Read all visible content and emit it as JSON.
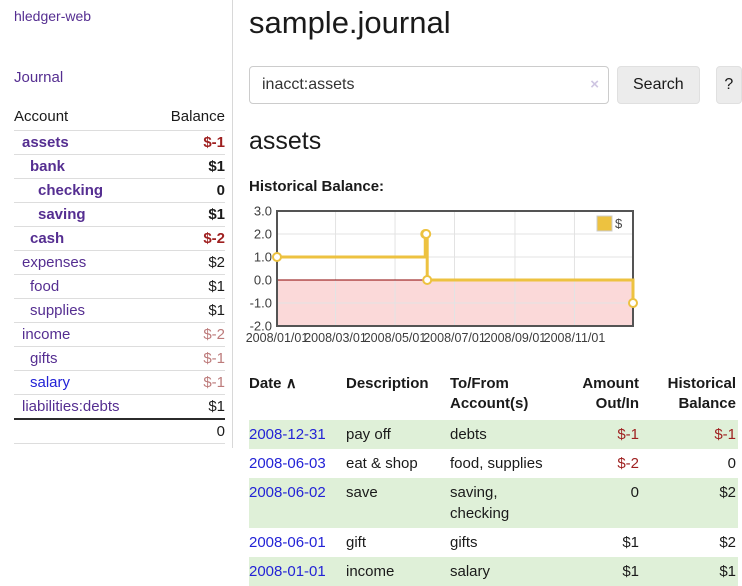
{
  "app": {
    "brand": "hledger-web",
    "nav_journal": "Journal"
  },
  "header": {
    "title": "sample.journal"
  },
  "search": {
    "value": "inacct:assets",
    "clear_icon": "×",
    "button_label": "Search",
    "help_label": "?"
  },
  "account_page": {
    "heading": "assets",
    "chart_label": "Historical Balance:"
  },
  "sidebar": {
    "col_account": "Account",
    "col_balance": "Balance",
    "accounts": [
      {
        "name": "assets",
        "depth": 1,
        "bold": true,
        "balance": "$-1",
        "neg": "strong",
        "blue": false
      },
      {
        "name": "bank",
        "depth": 2,
        "bold": true,
        "balance": "$1",
        "neg": "none",
        "blue": false
      },
      {
        "name": "checking",
        "depth": 3,
        "bold": true,
        "balance": "0",
        "neg": "none",
        "blue": false
      },
      {
        "name": "saving",
        "depth": 3,
        "bold": true,
        "balance": "$1",
        "neg": "none",
        "blue": false
      },
      {
        "name": "cash",
        "depth": 2,
        "bold": true,
        "balance": "$-2",
        "neg": "strong",
        "blue": false
      },
      {
        "name": "expenses",
        "depth": 1,
        "bold": false,
        "balance": "$2",
        "neg": "none",
        "blue": false
      },
      {
        "name": "food",
        "depth": 2,
        "bold": false,
        "balance": "$1",
        "neg": "none",
        "blue": false
      },
      {
        "name": "supplies",
        "depth": 2,
        "bold": false,
        "balance": "$1",
        "neg": "none",
        "blue": false
      },
      {
        "name": "income",
        "depth": 1,
        "bold": false,
        "balance": "$-2",
        "neg": "muted",
        "blue": false
      },
      {
        "name": "gifts",
        "depth": 2,
        "bold": false,
        "balance": "$-1",
        "neg": "muted",
        "blue": false
      },
      {
        "name": "salary",
        "depth": 2,
        "bold": false,
        "balance": "$-1",
        "neg": "muted",
        "blue": true
      },
      {
        "name": "liabilities:debts",
        "depth": 1,
        "bold": false,
        "balance": "$1",
        "neg": "none",
        "blue": false
      }
    ],
    "total": "0"
  },
  "chart_data": {
    "type": "line",
    "title": "Historical Balance",
    "step": true,
    "series": [
      {
        "name": "$",
        "color": "#EDC240",
        "points": [
          [
            "2008-01-01",
            1
          ],
          [
            "2008-06-01",
            2
          ],
          [
            "2008-06-02",
            2
          ],
          [
            "2008-06-03",
            0
          ],
          [
            "2008-12-31",
            -1
          ]
        ]
      }
    ],
    "ylim": [
      -2,
      3
    ],
    "yticks": [
      "3.0",
      "2.0",
      "1.0",
      "0.0",
      "-1.0",
      "-2.0"
    ],
    "xticks": [
      "2008/01/01",
      "2008/03/01",
      "2008/05/01",
      "2008/07/01",
      "2008/09/01",
      "2008/11/01"
    ],
    "xrange": [
      "2008-01-01",
      "2008-12-31"
    ],
    "grid": true,
    "legend_position": "top-right",
    "legend_label": "$",
    "negative_region_color": "#fbd9d9",
    "zero_line_color": "#8b0000",
    "grid_color": "#e3e3e3",
    "border_color": "#545454"
  },
  "transactions": {
    "columns": {
      "date": "Date",
      "sort_indicator": "∧",
      "description": "Description",
      "accounts": "To/From Account(s)",
      "amount": "Amount Out/In",
      "balance": "Historical Balance"
    },
    "rows": [
      {
        "date": "2008-12-31",
        "description": "pay off",
        "accounts": "debts",
        "amount": "$-1",
        "amount_neg": true,
        "balance": "$-1",
        "balance_neg": true
      },
      {
        "date": "2008-06-03",
        "description": "eat & shop",
        "accounts": "food, supplies",
        "amount": "$-2",
        "amount_neg": true,
        "balance": "0",
        "balance_neg": false
      },
      {
        "date": "2008-06-02",
        "description": "save",
        "accounts": "saving, checking",
        "amount": "0",
        "amount_neg": false,
        "balance": "$2",
        "balance_neg": false
      },
      {
        "date": "2008-06-01",
        "description": "gift",
        "accounts": "gifts",
        "amount": "$1",
        "amount_neg": false,
        "balance": "$2",
        "balance_neg": false
      },
      {
        "date": "2008-01-01",
        "description": "income",
        "accounts": "salary",
        "amount": "$1",
        "amount_neg": false,
        "balance": "$1",
        "balance_neg": false
      }
    ]
  },
  "colors": {
    "accent_purple": "#552e91",
    "link_blue": "#2323d6",
    "negative_strong": "#9e1f1f",
    "negative_muted": "#bd7b7b",
    "row_stripe_green": "#dff0d8",
    "series_gold": "#EDC240"
  }
}
